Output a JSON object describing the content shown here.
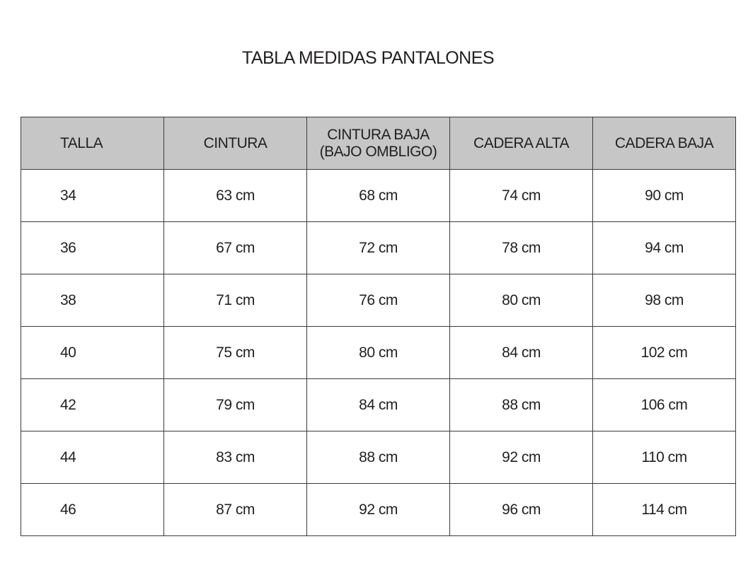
{
  "title": "TABLA MEDIDAS PANTALONES",
  "table": {
    "headers": [
      "TALLA",
      "CINTURA",
      "CINTURA BAJA",
      "(BAJO OMBLIGO)",
      "CADERA ALTA",
      "CADERA BAJA"
    ],
    "rows": [
      [
        "34",
        "63 cm",
        "68 cm",
        "74 cm",
        "90 cm"
      ],
      [
        "36",
        "67 cm",
        "72 cm",
        "78 cm",
        "94 cm"
      ],
      [
        "38",
        "71 cm",
        "76 cm",
        "80 cm",
        "98 cm"
      ],
      [
        "40",
        "75 cm",
        "80 cm",
        "84 cm",
        "102 cm"
      ],
      [
        "42",
        "79 cm",
        "84 cm",
        "88 cm",
        "106 cm"
      ],
      [
        "44",
        "83 cm",
        "88 cm",
        "92 cm",
        "110 cm"
      ],
      [
        "46",
        "87 cm",
        "92 cm",
        "96 cm",
        "114 cm"
      ]
    ]
  },
  "colors": {
    "header_bg": "#c6c6c6",
    "border": "#3a3a3a"
  }
}
